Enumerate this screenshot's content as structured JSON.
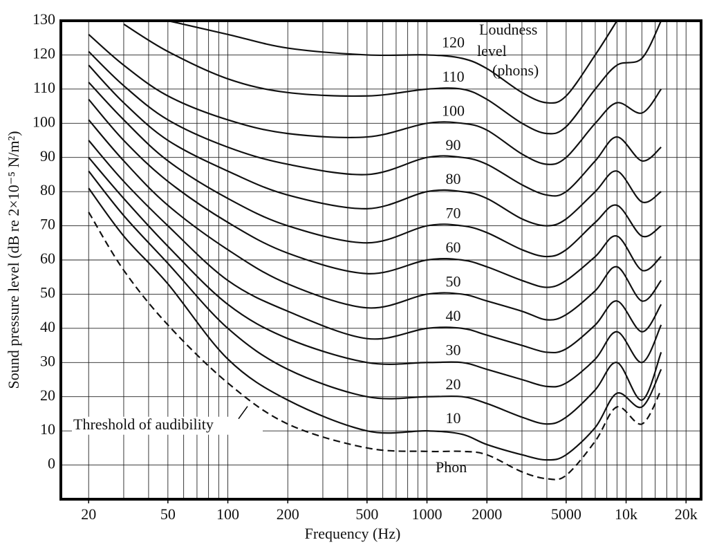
{
  "chart_data": {
    "type": "line",
    "x_label": "Frequency (Hz)",
    "y_label": "Sound pressure level (dB re 2×10⁻⁵ N/m²)",
    "annotations": [
      "Loudness",
      "level",
      "(phons)",
      "Phon"
    ],
    "log_x": true,
    "grid": true,
    "color": "#111111",
    "xlim": [
      14.5,
      23800
    ],
    "ylim": [
      -10,
      130
    ],
    "xticks": [
      20,
      50,
      100,
      200,
      500,
      1000,
      2000,
      5000,
      {
        "value": 10000,
        "label": "10k"
      },
      {
        "value": 20000,
        "label": "20k"
      }
    ],
    "xgrid": [
      20,
      30,
      40,
      50,
      60,
      70,
      80,
      90,
      100,
      200,
      300,
      400,
      500,
      600,
      700,
      800,
      900,
      1000,
      2000,
      3000,
      4000,
      5000,
      6000,
      7000,
      8000,
      9000,
      10000,
      12000,
      14000,
      16000,
      18000,
      20000
    ],
    "yticks": [
      0,
      10,
      20,
      30,
      40,
      50,
      60,
      70,
      80,
      90,
      100,
      110,
      120,
      130
    ],
    "x": [
      20,
      30,
      50,
      100,
      200,
      500,
      1000,
      1500,
      2000,
      3000,
      4000,
      5000,
      7000,
      9000,
      12000,
      15000
    ],
    "series": [
      {
        "name": "Threshold of audibility",
        "dashed": true,
        "values": [
          74,
          57,
          41,
          24,
          12,
          5,
          4,
          4,
          3,
          -2,
          -4,
          -3,
          7,
          17,
          12,
          22
        ]
      },
      {
        "name": "10",
        "values": [
          81,
          67,
          53,
          31,
          19,
          10,
          10,
          9,
          6,
          3,
          1.5,
          3,
          11,
          21,
          17,
          28
        ]
      },
      {
        "name": "20",
        "values": [
          86,
          73,
          59,
          40,
          28,
          20,
          20,
          20,
          18,
          14,
          12,
          14,
          22,
          30,
          19,
          33
        ]
      },
      {
        "name": "30",
        "values": [
          90,
          78,
          64,
          47,
          37,
          30,
          30,
          30,
          28,
          25,
          23,
          24,
          31,
          39,
          30,
          41
        ]
      },
      {
        "name": "40",
        "values": [
          95,
          83,
          70,
          54,
          45,
          37,
          40,
          40,
          38,
          35,
          33,
          34,
          41,
          48,
          39,
          47
        ]
      },
      {
        "name": "50",
        "values": [
          101,
          89,
          76,
          63,
          53,
          46,
          50,
          50,
          48,
          45,
          42.5,
          44,
          51,
          58,
          48,
          54
        ]
      },
      {
        "name": "60",
        "values": [
          107,
          95,
          83,
          71,
          62,
          56,
          60,
          60,
          58,
          54,
          52,
          54,
          61,
          67,
          57,
          61
        ]
      },
      {
        "name": "70",
        "values": [
          112,
          101,
          89,
          78,
          70,
          65,
          70,
          70,
          68,
          63,
          61,
          63,
          71,
          76,
          67,
          70
        ]
      },
      {
        "name": "80",
        "values": [
          117,
          106,
          95,
          86,
          79,
          75,
          80,
          80,
          78,
          72,
          70,
          72,
          80,
          86,
          77,
          80
        ]
      },
      {
        "name": "90",
        "values": [
          121,
          111,
          101,
          93,
          88,
          85,
          90,
          90,
          88,
          82,
          79,
          80,
          89,
          96,
          89,
          93
        ]
      },
      {
        "name": "100",
        "values": [
          126,
          117,
          108,
          101,
          97,
          96,
          100,
          100,
          98,
          91,
          88,
          90,
          100,
          106,
          103,
          110
        ]
      },
      {
        "name": "110",
        "values": [
          null,
          129,
          121,
          113,
          109,
          108,
          110,
          110,
          107,
          100,
          97,
          99,
          110,
          117,
          119,
          130
        ]
      },
      {
        "name": "120",
        "values": [
          null,
          null,
          130,
          126,
          122,
          120,
          120,
          119,
          116,
          109,
          106,
          108,
          120,
          130,
          null,
          null
        ]
      }
    ]
  }
}
